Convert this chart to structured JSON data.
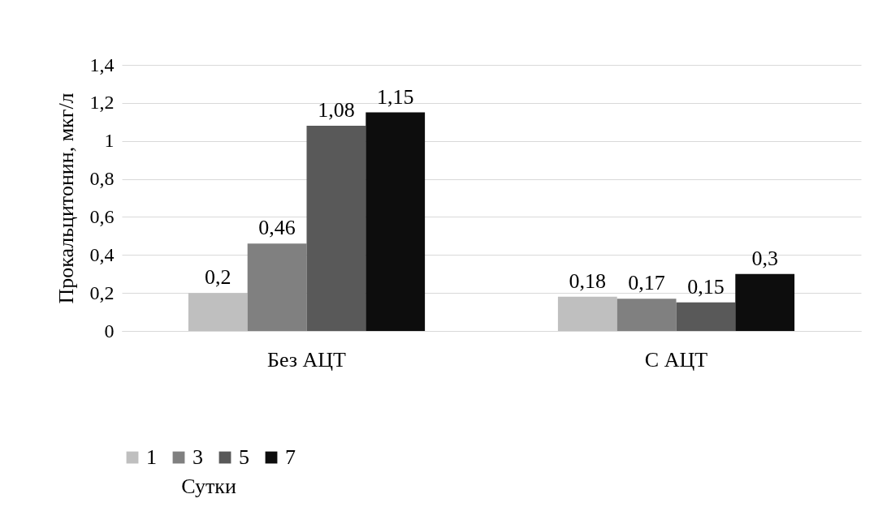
{
  "chart_data": {
    "type": "bar",
    "ylabel": "Прокальцитонин, мкг/л",
    "legend_title": "Сутки",
    "categories": [
      "Без АЦТ",
      "С АЦТ"
    ],
    "series": [
      {
        "name": "1",
        "color": "#bfbfbf",
        "values": [
          0.2,
          0.18
        ],
        "value_labels": [
          "0,2",
          "0,18"
        ]
      },
      {
        "name": "3",
        "color": "#808080",
        "values": [
          0.46,
          0.17
        ],
        "value_labels": [
          "0,46",
          "0,17"
        ]
      },
      {
        "name": "5",
        "color": "#595959",
        "values": [
          1.08,
          0.15
        ],
        "value_labels": [
          "1,08",
          "0,15"
        ]
      },
      {
        "name": "7",
        "color": "#0d0d0d",
        "values": [
          1.15,
          0.3
        ],
        "value_labels": [
          "1,15",
          "0,3"
        ]
      }
    ],
    "ylim": [
      0,
      1.4
    ],
    "yticks": [
      0,
      {
        "value": 0.2,
        "label": "0,2"
      },
      {
        "value": 0.4,
        "label": "0,4"
      },
      {
        "value": 0.6,
        "label": "0,6"
      },
      {
        "value": 0.8,
        "label": "0,8"
      },
      1,
      {
        "value": 1.2,
        "label": "1,2"
      },
      {
        "value": 1.4,
        "label": "1,4"
      }
    ],
    "grid": "y",
    "legend": "bottom"
  }
}
